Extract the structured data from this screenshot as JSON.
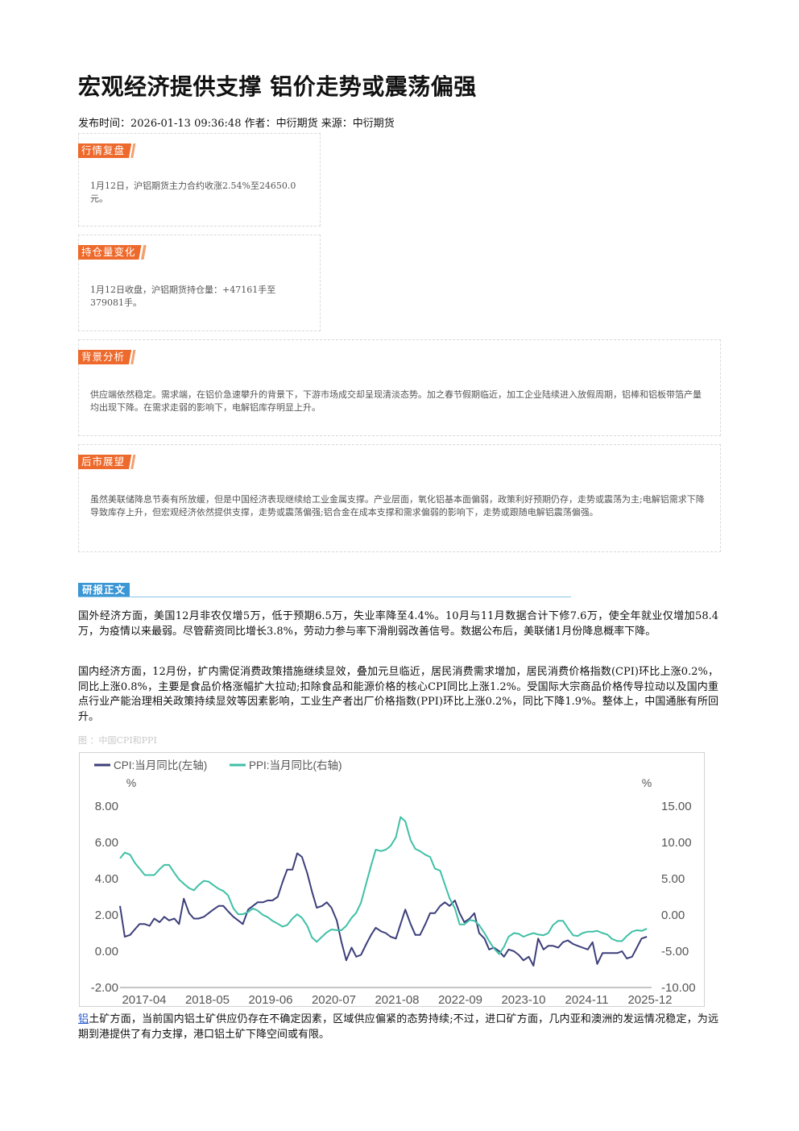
{
  "article": {
    "title": "宏观经济提供支撑 铝价走势或震荡偏强",
    "meta": "发布时间：2026-01-13 09:36:48 作者：中衍期货 来源：中衍期货"
  },
  "sections": {
    "review": {
      "tag": "行情复盘",
      "text": "1月12日，沪铝期货主力合约收涨2.54%至24650.0元。"
    },
    "position": {
      "tag": "持仓量变化",
      "text": "1月12日收盘，沪铝期货持仓量：+47161手至379081手。"
    },
    "background": {
      "tag": "背景分析",
      "text": "供应端依然稳定。需求端，在铝价急速攀升的背景下，下游市场成交却呈现清淡态势。加之春节假期临近，加工企业陆续进入放假周期，铝棒和铝板带箔产量均出现下降。在需求走弱的影响下，电解铝库存明显上升。"
    },
    "outlook": {
      "tag": "后市展望",
      "text": "虽然美联储降息节奏有所放缓，但是中国经济表现继续给工业金属支撑。产业层面，氧化铝基本面偏弱，政策利好预期仍存，走势或震荡为主;电解铝需求下降导致库存上升，但宏观经济依然提供支撑，走势或震荡偏强;铝合金在成本支撑和需求偏弱的影响下，走势或跟随电解铝震荡偏强。"
    }
  },
  "report": {
    "tag": "研报正文",
    "p1": "国外经济方面，美国12月非农仅增5万，低于预期6.5万，失业率降至4.4%。10月与11月数据合计下修7.6万，使全年就业仅增加58.4万，为疫情以来最弱。尽管薪资同比增长3.8%，劳动力参与率下滑削弱改善信号。数据公布后，美联储1月份降息概率下降。",
    "p2": "国内经济方面，12月份，扩内需促消费政策措施继续显效，叠加元旦临近，居民消费需求增加，居民消费价格指数(CPI)环比上涨0.2%，同比上涨0.8%，主要是食品价格涨幅扩大拉动;扣除食品和能源价格的核心CPI同比上涨1.2%。受国际大宗商品价格传导拉动以及国内重点行业产能治理相关政策持续显效等因素影响，工业生产者出厂价格指数(PPI)环比上涨0.2%，同比下降1.9%。整体上，中国通胀有所回升。",
    "caption": "图 ：中国CPI和PPI",
    "p3_link": "铝",
    "p3_rest": "土矿方面，当前国内铝土矿供应仍存在不确定因素，区域供应偏紧的态势持续;不过，进口矿方面，几内亚和澳洲的发运情况稳定，为远期到港提供了有力支撑，港口铝土矿下降空间或有限。"
  },
  "chart_data": {
    "type": "line",
    "legend": [
      "CPI:当月同比(左轴)",
      "PPI:当月同比(右轴)"
    ],
    "left_unit": "%",
    "right_unit": "%",
    "left_ticks": [
      "8.00",
      "6.00",
      "4.00",
      "2.00",
      "0.00",
      "-2.00"
    ],
    "right_ticks": [
      "15.00",
      "10.00",
      "5.00",
      "0.00",
      "-5.00",
      "-10.00"
    ],
    "x_ticks": [
      "2017-04",
      "2018-05",
      "2019-06",
      "2020-07",
      "2021-08",
      "2022-09",
      "2023-10",
      "2024-11",
      "2025-12"
    ],
    "left_range": [
      -2,
      8
    ],
    "right_range": [
      -10,
      15
    ],
    "x_range": [
      2017.0,
      2026.0
    ],
    "colors": {
      "cpi": "#3c3f7a",
      "ppi": "#3fc0a6",
      "axis": "#888888",
      "text": "#555555"
    },
    "series": [
      {
        "name": "CPI:当月同比(左轴)",
        "axis": "left",
        "values": [
          [
            2017.0,
            2.5
          ],
          [
            2017.08,
            0.8
          ],
          [
            2017.17,
            0.9
          ],
          [
            2017.25,
            1.2
          ],
          [
            2017.33,
            1.5
          ],
          [
            2017.42,
            1.5
          ],
          [
            2017.5,
            1.4
          ],
          [
            2017.58,
            1.8
          ],
          [
            2017.67,
            1.6
          ],
          [
            2017.75,
            1.9
          ],
          [
            2017.83,
            1.7
          ],
          [
            2017.92,
            1.8
          ],
          [
            2018.0,
            1.5
          ],
          [
            2018.08,
            2.9
          ],
          [
            2018.17,
            2.1
          ],
          [
            2018.25,
            1.8
          ],
          [
            2018.33,
            1.8
          ],
          [
            2018.42,
            1.9
          ],
          [
            2018.5,
            2.1
          ],
          [
            2018.58,
            2.3
          ],
          [
            2018.67,
            2.5
          ],
          [
            2018.75,
            2.5
          ],
          [
            2018.83,
            2.2
          ],
          [
            2018.92,
            1.9
          ],
          [
            2019.0,
            1.7
          ],
          [
            2019.08,
            1.5
          ],
          [
            2019.17,
            2.3
          ],
          [
            2019.25,
            2.5
          ],
          [
            2019.33,
            2.7
          ],
          [
            2019.42,
            2.7
          ],
          [
            2019.5,
            2.8
          ],
          [
            2019.58,
            2.8
          ],
          [
            2019.67,
            3.0
          ],
          [
            2019.75,
            3.8
          ],
          [
            2019.83,
            4.5
          ],
          [
            2019.92,
            4.5
          ],
          [
            2020.0,
            5.4
          ],
          [
            2020.08,
            5.2
          ],
          [
            2020.17,
            4.3
          ],
          [
            2020.25,
            3.3
          ],
          [
            2020.33,
            2.4
          ],
          [
            2020.42,
            2.5
          ],
          [
            2020.5,
            2.7
          ],
          [
            2020.58,
            2.4
          ],
          [
            2020.67,
            1.7
          ],
          [
            2020.75,
            0.5
          ],
          [
            2020.83,
            -0.5
          ],
          [
            2020.92,
            0.2
          ],
          [
            2021.0,
            -0.3
          ],
          [
            2021.08,
            -0.2
          ],
          [
            2021.17,
            0.4
          ],
          [
            2021.25,
            0.9
          ],
          [
            2021.33,
            1.3
          ],
          [
            2021.42,
            1.1
          ],
          [
            2021.5,
            1.0
          ],
          [
            2021.58,
            0.8
          ],
          [
            2021.67,
            0.7
          ],
          [
            2021.75,
            1.5
          ],
          [
            2021.83,
            2.3
          ],
          [
            2021.92,
            1.5
          ],
          [
            2022.0,
            0.9
          ],
          [
            2022.08,
            0.9
          ],
          [
            2022.17,
            1.5
          ],
          [
            2022.25,
            2.1
          ],
          [
            2022.33,
            2.1
          ],
          [
            2022.42,
            2.5
          ],
          [
            2022.5,
            2.7
          ],
          [
            2022.58,
            2.5
          ],
          [
            2022.67,
            2.8
          ],
          [
            2022.75,
            2.1
          ],
          [
            2022.83,
            1.6
          ],
          [
            2022.92,
            1.8
          ],
          [
            2023.0,
            2.1
          ],
          [
            2023.08,
            1.0
          ],
          [
            2023.17,
            0.7
          ],
          [
            2023.25,
            0.1
          ],
          [
            2023.33,
            0.2
          ],
          [
            2023.42,
            0.0
          ],
          [
            2023.5,
            -0.3
          ],
          [
            2023.58,
            0.1
          ],
          [
            2023.67,
            0.0
          ],
          [
            2023.75,
            -0.2
          ],
          [
            2023.83,
            -0.5
          ],
          [
            2023.92,
            -0.3
          ],
          [
            2024.0,
            -0.8
          ],
          [
            2024.08,
            0.7
          ],
          [
            2024.17,
            0.1
          ],
          [
            2024.25,
            0.3
          ],
          [
            2024.33,
            0.3
          ],
          [
            2024.42,
            0.2
          ],
          [
            2024.5,
            0.5
          ],
          [
            2024.58,
            0.6
          ],
          [
            2024.67,
            0.4
          ],
          [
            2024.75,
            0.3
          ],
          [
            2024.83,
            0.2
          ],
          [
            2024.92,
            0.1
          ],
          [
            2025.0,
            0.5
          ],
          [
            2025.08,
            -0.7
          ],
          [
            2025.17,
            -0.1
          ],
          [
            2025.25,
            -0.1
          ],
          [
            2025.33,
            -0.1
          ],
          [
            2025.42,
            -0.1
          ],
          [
            2025.5,
            0.0
          ],
          [
            2025.58,
            -0.4
          ],
          [
            2025.67,
            -0.3
          ],
          [
            2025.75,
            0.2
          ],
          [
            2025.83,
            0.7
          ],
          [
            2025.92,
            0.8
          ]
        ]
      },
      {
        "name": "PPI:当月同比(右轴)",
        "axis": "right",
        "values": [
          [
            2017.0,
            7.8
          ],
          [
            2017.08,
            8.6
          ],
          [
            2017.17,
            8.3
          ],
          [
            2017.25,
            7.2
          ],
          [
            2017.33,
            6.4
          ],
          [
            2017.42,
            5.5
          ],
          [
            2017.5,
            5.5
          ],
          [
            2017.58,
            5.5
          ],
          [
            2017.67,
            6.3
          ],
          [
            2017.75,
            6.9
          ],
          [
            2017.83,
            6.9
          ],
          [
            2017.92,
            5.8
          ],
          [
            2018.0,
            4.9
          ],
          [
            2018.08,
            4.3
          ],
          [
            2018.17,
            3.7
          ],
          [
            2018.25,
            3.4
          ],
          [
            2018.33,
            4.1
          ],
          [
            2018.42,
            4.7
          ],
          [
            2018.5,
            4.6
          ],
          [
            2018.58,
            4.1
          ],
          [
            2018.67,
            3.6
          ],
          [
            2018.75,
            3.3
          ],
          [
            2018.83,
            2.7
          ],
          [
            2018.92,
            0.9
          ],
          [
            2019.0,
            0.1
          ],
          [
            2019.08,
            0.1
          ],
          [
            2019.17,
            0.4
          ],
          [
            2019.25,
            0.9
          ],
          [
            2019.33,
            0.6
          ],
          [
            2019.42,
            0.0
          ],
          [
            2019.5,
            -0.3
          ],
          [
            2019.58,
            -0.8
          ],
          [
            2019.67,
            -1.2
          ],
          [
            2019.75,
            -1.6
          ],
          [
            2019.83,
            -1.4
          ],
          [
            2019.92,
            -0.5
          ],
          [
            2020.0,
            0.1
          ],
          [
            2020.08,
            -0.4
          ],
          [
            2020.17,
            -1.5
          ],
          [
            2020.25,
            -3.1
          ],
          [
            2020.33,
            -3.7
          ],
          [
            2020.42,
            -3.0
          ],
          [
            2020.5,
            -2.4
          ],
          [
            2020.58,
            -2.0
          ],
          [
            2020.67,
            -2.1
          ],
          [
            2020.75,
            -2.1
          ],
          [
            2020.83,
            -1.5
          ],
          [
            2020.92,
            -0.4
          ],
          [
            2021.0,
            0.3
          ],
          [
            2021.08,
            1.7
          ],
          [
            2021.17,
            4.4
          ],
          [
            2021.25,
            6.8
          ],
          [
            2021.33,
            9.0
          ],
          [
            2021.42,
            8.8
          ],
          [
            2021.5,
            9.0
          ],
          [
            2021.58,
            9.5
          ],
          [
            2021.67,
            10.7
          ],
          [
            2021.75,
            13.5
          ],
          [
            2021.83,
            12.9
          ],
          [
            2021.92,
            10.3
          ],
          [
            2022.0,
            9.1
          ],
          [
            2022.08,
            8.8
          ],
          [
            2022.17,
            8.3
          ],
          [
            2022.25,
            8.0
          ],
          [
            2022.33,
            6.4
          ],
          [
            2022.42,
            6.1
          ],
          [
            2022.5,
            4.2
          ],
          [
            2022.58,
            2.3
          ],
          [
            2022.67,
            0.9
          ],
          [
            2022.75,
            -1.3
          ],
          [
            2022.83,
            -1.3
          ],
          [
            2022.92,
            -0.7
          ],
          [
            2023.0,
            -0.8
          ],
          [
            2023.08,
            -1.4
          ],
          [
            2023.17,
            -2.5
          ],
          [
            2023.25,
            -3.6
          ],
          [
            2023.33,
            -4.6
          ],
          [
            2023.42,
            -5.4
          ],
          [
            2023.5,
            -4.4
          ],
          [
            2023.58,
            -3.0
          ],
          [
            2023.67,
            -2.5
          ],
          [
            2023.75,
            -2.6
          ],
          [
            2023.83,
            -3.0
          ],
          [
            2023.92,
            -2.7
          ],
          [
            2024.0,
            -2.5
          ],
          [
            2024.08,
            -2.7
          ],
          [
            2024.17,
            -2.8
          ],
          [
            2024.25,
            -2.5
          ],
          [
            2024.33,
            -1.4
          ],
          [
            2024.42,
            -0.8
          ],
          [
            2024.5,
            -0.8
          ],
          [
            2024.58,
            -1.8
          ],
          [
            2024.67,
            -2.8
          ],
          [
            2024.75,
            -2.9
          ],
          [
            2024.83,
            -2.5
          ],
          [
            2024.92,
            -2.3
          ],
          [
            2025.0,
            -2.3
          ],
          [
            2025.08,
            -2.2
          ],
          [
            2025.17,
            -2.5
          ],
          [
            2025.25,
            -2.7
          ],
          [
            2025.33,
            -3.3
          ],
          [
            2025.42,
            -3.6
          ],
          [
            2025.5,
            -3.6
          ],
          [
            2025.58,
            -2.9
          ],
          [
            2025.67,
            -2.3
          ],
          [
            2025.75,
            -2.1
          ],
          [
            2025.83,
            -2.2
          ],
          [
            2025.92,
            -1.9
          ]
        ]
      }
    ]
  }
}
